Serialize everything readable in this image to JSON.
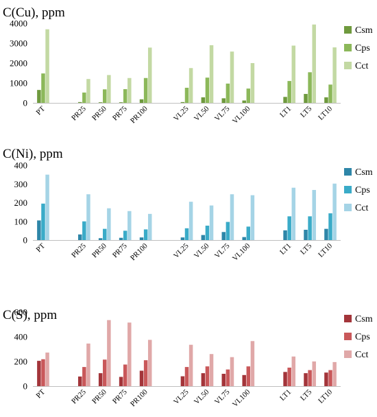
{
  "chart_data": [
    {
      "type": "bar",
      "title": "C(Cu), ppm",
      "categories": [
        "PT",
        "PR25",
        "PR50",
        "PR75",
        "PR100",
        "VL25",
        "VL50",
        "VL75",
        "VL100",
        "LT1",
        "LT5",
        "LT10"
      ],
      "group_slots": [
        0,
        2,
        3,
        4,
        5,
        7,
        8,
        9,
        10,
        12,
        13,
        14
      ],
      "ylim": [
        0,
        4000
      ],
      "yticks": [
        0,
        1000,
        2000,
        3000,
        4000
      ],
      "legend_position": "right",
      "grid": false,
      "series": [
        {
          "name": "Csm",
          "color": "#6f9a3e",
          "values": [
            650,
            40,
            30,
            30,
            180,
            40,
            280,
            230,
            120,
            300,
            450,
            280
          ]
        },
        {
          "name": "Cps",
          "color": "#8cb85a",
          "values": [
            1480,
            520,
            680,
            690,
            1250,
            760,
            1270,
            970,
            720,
            1100,
            1540,
            920
          ]
        },
        {
          "name": "Cct",
          "color": "#c3d9a3",
          "values": [
            3700,
            1200,
            1400,
            1250,
            2780,
            1750,
            2900,
            2580,
            2000,
            2880,
            3940,
            2790
          ]
        }
      ]
    },
    {
      "type": "bar",
      "title": "C(Ni), ppm",
      "categories": [
        "PT",
        "PR25",
        "PR50",
        "PR75",
        "PR100",
        "VL25",
        "VL50",
        "VL75",
        "VL100",
        "LT1",
        "LT5",
        "LT10"
      ],
      "group_slots": [
        0,
        2,
        3,
        4,
        5,
        7,
        8,
        9,
        10,
        12,
        13,
        14
      ],
      "ylim": [
        0,
        400
      ],
      "yticks": [
        0,
        100,
        200,
        300,
        400
      ],
      "legend_position": "right",
      "grid": false,
      "series": [
        {
          "name": "Csm",
          "color": "#2e86a8",
          "values": [
            105,
            30,
            10,
            12,
            14,
            14,
            27,
            43,
            16,
            52,
            55,
            60
          ]
        },
        {
          "name": "Cps",
          "color": "#3aabc8",
          "values": [
            195,
            100,
            60,
            50,
            57,
            63,
            77,
            97,
            72,
            127,
            127,
            143
          ]
        },
        {
          "name": "Cct",
          "color": "#a5d4e6",
          "values": [
            350,
            245,
            170,
            155,
            140,
            205,
            185,
            245,
            240,
            280,
            268,
            302
          ]
        }
      ]
    },
    {
      "type": "bar",
      "title": "C(S), ppm",
      "categories": [
        "PT",
        "PR25",
        "PR50",
        "PR75",
        "PR100",
        "VL25",
        "VL50",
        "VL75",
        "VL100",
        "LT1",
        "LT5",
        "LT10"
      ],
      "group_slots": [
        0,
        2,
        3,
        4,
        5,
        7,
        8,
        9,
        10,
        12,
        13,
        14
      ],
      "ylim": [
        0,
        600
      ],
      "yticks": [
        0,
        200,
        400,
        600
      ],
      "legend_position": "right",
      "grid": false,
      "series": [
        {
          "name": "Csm",
          "color": "#a3353a",
          "values": [
            205,
            78,
            105,
            75,
            125,
            80,
            105,
            100,
            90,
            115,
            105,
            110
          ]
        },
        {
          "name": "Cps",
          "color": "#c9585a",
          "values": [
            218,
            155,
            215,
            175,
            210,
            155,
            160,
            135,
            160,
            150,
            130,
            130
          ]
        },
        {
          "name": "Cct",
          "color": "#e0a8a8",
          "values": [
            272,
            345,
            535,
            515,
            375,
            335,
            260,
            235,
            365,
            240,
            200,
            195
          ]
        }
      ]
    }
  ]
}
